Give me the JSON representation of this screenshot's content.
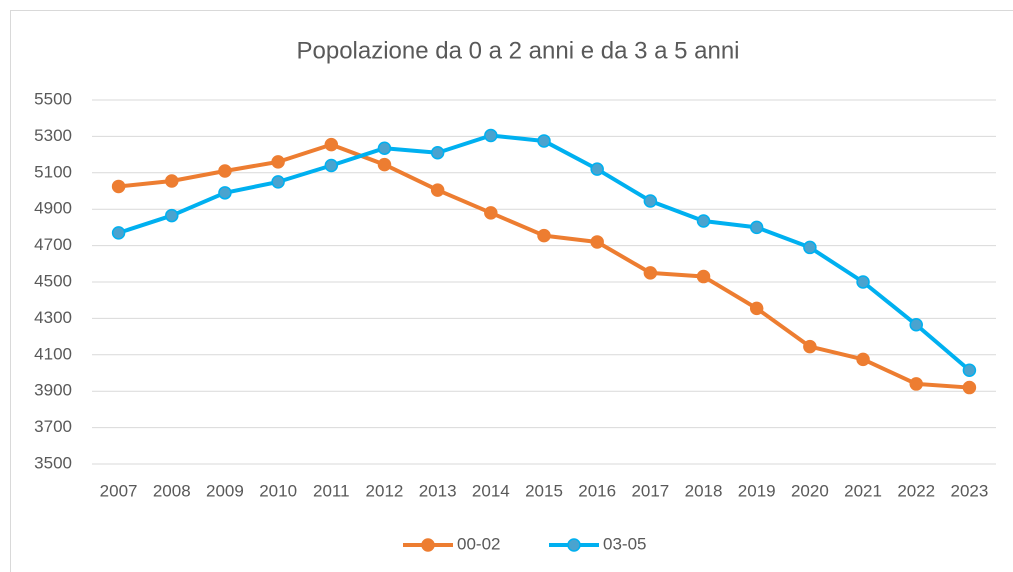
{
  "chart_data": {
    "type": "line",
    "title": "Popolazione da 0 a 2 anni e da 3 a 5 anni",
    "categories": [
      "2007",
      "2008",
      "2009",
      "2010",
      "2011",
      "2012",
      "2013",
      "2014",
      "2015",
      "2016",
      "2017",
      "2018",
      "2019",
      "2020",
      "2021",
      "2022",
      "2023"
    ],
    "series": [
      {
        "name": "00-02",
        "color": "#ed7d31",
        "values": [
          5025,
          5055,
          5110,
          5160,
          5255,
          5145,
          5005,
          4880,
          4755,
          4720,
          4550,
          4530,
          4355,
          4145,
          4075,
          3940,
          3920
        ]
      },
      {
        "name": "03-05",
        "color": "#00b0f0",
        "values": [
          4770,
          4865,
          4990,
          5050,
          5140,
          5235,
          5210,
          5305,
          5275,
          5120,
          4945,
          4835,
          4800,
          4690,
          4500,
          4265,
          4015
        ]
      }
    ],
    "ylim": [
      3500,
      5500
    ],
    "yticks": [
      3500,
      3700,
      3900,
      4100,
      4300,
      4500,
      4700,
      4900,
      5100,
      5300,
      5500
    ],
    "grid": true,
    "legend": "bottom"
  }
}
